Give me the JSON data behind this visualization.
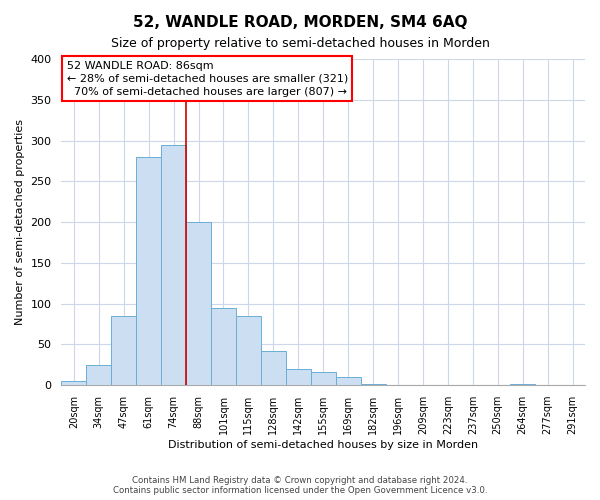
{
  "title": "52, WANDLE ROAD, MORDEN, SM4 6AQ",
  "subtitle": "Size of property relative to semi-detached houses in Morden",
  "xlabel": "Distribution of semi-detached houses by size in Morden",
  "ylabel": "Number of semi-detached properties",
  "bar_labels": [
    "20sqm",
    "34sqm",
    "47sqm",
    "61sqm",
    "74sqm",
    "88sqm",
    "101sqm",
    "115sqm",
    "128sqm",
    "142sqm",
    "155sqm",
    "169sqm",
    "182sqm",
    "196sqm",
    "209sqm",
    "223sqm",
    "237sqm",
    "250sqm",
    "264sqm",
    "277sqm",
    "291sqm"
  ],
  "bar_values": [
    5,
    25,
    85,
    280,
    295,
    200,
    95,
    85,
    42,
    20,
    16,
    10,
    1,
    0,
    0,
    0,
    0,
    0,
    2,
    0,
    0
  ],
  "bar_color": "#ccdff2",
  "bar_edge_color": "#6aaed6",
  "property_line_x": 4.5,
  "annotation_text_line1": "52 WANDLE ROAD: 86sqm",
  "annotation_text_line2": "← 28% of semi-detached houses are smaller (321)",
  "annotation_text_line3": "  70% of semi-detached houses are larger (807) →",
  "ylim": [
    0,
    400
  ],
  "footer1": "Contains HM Land Registry data © Crown copyright and database right 2024.",
  "footer2": "Contains public sector information licensed under the Open Government Licence v3.0.",
  "background_color": "#ffffff",
  "grid_color": "#ccd8ea",
  "line_color": "#cc0000",
  "title_fontsize": 11,
  "subtitle_fontsize": 9,
  "ylabel_fontsize": 8,
  "xlabel_fontsize": 8,
  "annotation_fontsize": 8
}
